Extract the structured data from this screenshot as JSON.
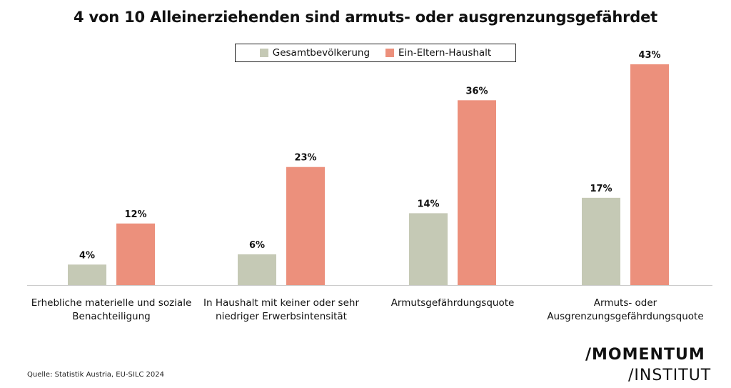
{
  "title": "4 von 10 Alleinerziehenden sind armuts- oder ausgrenzungsgefährdet",
  "colors": {
    "series_1": "#c5c9b5",
    "series_2": "#ec907c",
    "axis": "#cccccc"
  },
  "legend": {
    "items": [
      {
        "label": "Gesamtbevölkerung"
      },
      {
        "label": "Ein-Eltern-Haushalt"
      }
    ]
  },
  "chart_data": {
    "type": "bar",
    "title": "4 von 10 Alleinerziehenden sind armuts- oder ausgrenzungsgefährdet",
    "categories": [
      [
        "Erhebliche materielle und soziale",
        "Benachteiligung"
      ],
      [
        "In Haushalt mit keiner oder sehr",
        "niedriger Erwerbsintensität"
      ],
      [
        "Armutsgefährdungsquote"
      ],
      [
        "Armuts- oder",
        "Ausgrenzungsgefährdungsquote"
      ]
    ],
    "series": [
      {
        "name": "Gesamtbevölkerung",
        "values": [
          4,
          6,
          14,
          17
        ],
        "labels": [
          "4%",
          "6%",
          "14%",
          "17%"
        ]
      },
      {
        "name": "Ein-Eltern-Haushalt",
        "values": [
          12,
          23,
          36,
          43
        ],
        "labels": [
          "12%",
          "23%",
          "36%",
          "43%"
        ]
      }
    ],
    "xlabel": "",
    "ylabel": "",
    "ylim": [
      0,
      43
    ],
    "grid": false,
    "legend_position": "top-center"
  },
  "source": "Quelle: Statistik Austria, EU-SILC 2024",
  "logo": {
    "line1": "/MOMENTUM",
    "line2": "/INSTITUT"
  }
}
